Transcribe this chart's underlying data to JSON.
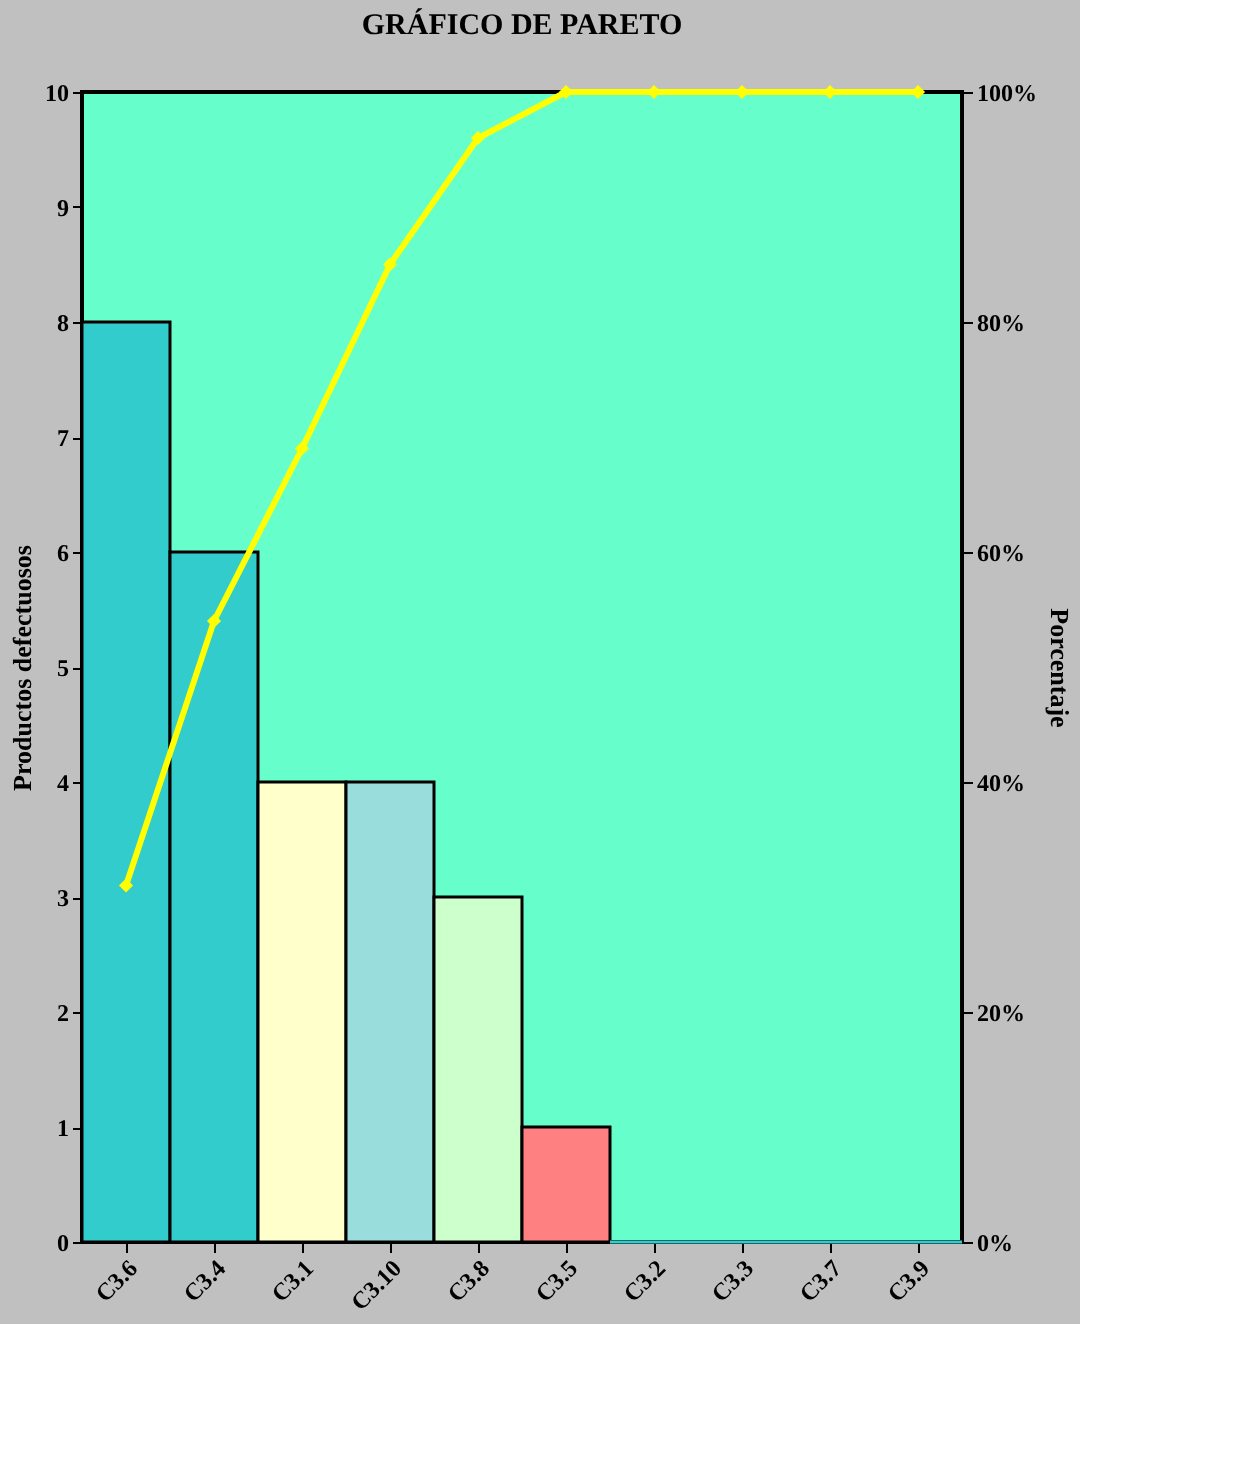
{
  "chart_data": {
    "type": "bar",
    "title": "GRÁFICO DE PARETO",
    "ylabel": "Productos defectuosos",
    "y2label": "Porcentaje",
    "categories": [
      "C3.6",
      "C3.4",
      "C3.1",
      "C3.10",
      "C3.8",
      "C3.5",
      "C3.2",
      "C3.3",
      "C3.7",
      "C3.9"
    ],
    "series": [
      {
        "colors": [
          "#33cccc",
          "#33cccc",
          "#ffffcc",
          "#99dddd",
          "#ccffcc",
          "#ff8080",
          "#33cccc",
          "#33cccc",
          "#33cccc",
          "#33cccc"
        ],
        "values": [
          8,
          6,
          4,
          4,
          3,
          1,
          0,
          0,
          0,
          0
        ],
        "axis": "y"
      },
      {
        "type": "line",
        "color": "#ffff00",
        "values": [
          31,
          54,
          69,
          85,
          96,
          100,
          100,
          100,
          100,
          100
        ],
        "axis": "y2",
        "marker": "diamond"
      }
    ],
    "ylim": [
      0,
      10
    ],
    "yticks": [
      0,
      1,
      2,
      3,
      4,
      5,
      6,
      7,
      8,
      9,
      10
    ],
    "y2lim": [
      0,
      100
    ],
    "y2ticks": [
      {
        "value": 0,
        "label": "0%"
      },
      {
        "value": 20,
        "label": "20%"
      },
      {
        "value": 40,
        "label": "40%"
      },
      {
        "value": 60,
        "label": "60%"
      },
      {
        "value": 80,
        "label": "80%"
      },
      {
        "value": 100,
        "label": "100%"
      }
    ],
    "grid": false
  }
}
